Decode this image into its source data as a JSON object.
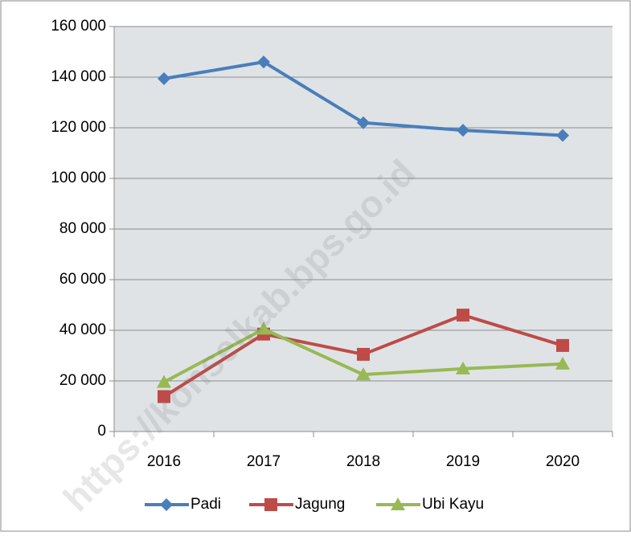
{
  "chart_data": {
    "type": "line",
    "categories": [
      "2016",
      "2017",
      "2018",
      "2019",
      "2020"
    ],
    "series": [
      {
        "name": "Padi",
        "color": "#4a7ebb",
        "marker": "diamond",
        "values": [
          139400,
          146000,
          122000,
          119000,
          117000
        ]
      },
      {
        "name": "Jagung",
        "color": "#be4b48",
        "marker": "square",
        "values": [
          13800,
          38500,
          30500,
          46000,
          34000
        ]
      },
      {
        "name": "Ubi Kayu",
        "color": "#98b954",
        "marker": "triangle",
        "values": [
          19500,
          40500,
          22500,
          24800,
          26700
        ]
      }
    ],
    "ylim": [
      0,
      160000
    ],
    "yticks": [
      0,
      {
        "value": 20000,
        "label": "20 000"
      },
      {
        "value": 40000,
        "label": "40 000"
      },
      {
        "value": 60000,
        "label": "60 000"
      },
      {
        "value": 80000,
        "label": "80 000"
      },
      {
        "value": 100000,
        "label": "100 000"
      },
      {
        "value": 120000,
        "label": "120 000"
      },
      {
        "value": 140000,
        "label": "140 000"
      },
      {
        "value": 160000,
        "label": "160 000"
      }
    ],
    "grid": true,
    "legend": "bottom",
    "watermark": "https://konselkab.bps.go.id"
  }
}
